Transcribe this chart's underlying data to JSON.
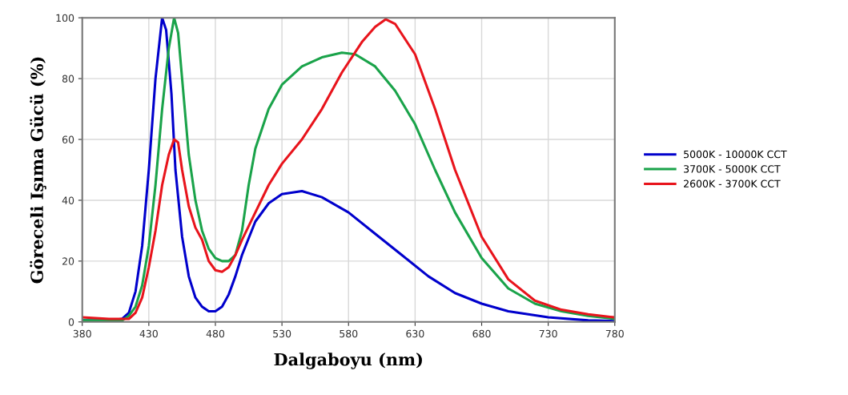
{
  "chart_data": {
    "type": "line",
    "xlabel": "Dalgaboyu (nm)",
    "ylabel": "Göreceli Işıma Gücü (%)",
    "xlim": [
      380,
      780
    ],
    "xticks": [
      380,
      430,
      480,
      530,
      580,
      630,
      680,
      730,
      780
    ],
    "ylim": [
      0,
      100
    ],
    "yticks": [
      0,
      20,
      40,
      60,
      80,
      100
    ],
    "grid": true,
    "legend": "right",
    "marker": "none",
    "line_style": "solid",
    "series": [
      {
        "name": "5000K - 10000K CCT",
        "color": "#0000cc",
        "x": [
          380,
          400,
          410,
          415,
          420,
          425,
          430,
          435,
          440,
          443,
          447,
          450,
          455,
          460,
          465,
          470,
          475,
          480,
          485,
          490,
          495,
          500,
          510,
          520,
          530,
          545,
          560,
          580,
          600,
          620,
          640,
          660,
          680,
          700,
          730,
          760,
          780
        ],
        "values": [
          0.5,
          0.5,
          1,
          3,
          10,
          25,
          50,
          80,
          100,
          96,
          75,
          50,
          28,
          15,
          8,
          5,
          3.5,
          3.5,
          5,
          9,
          15,
          22,
          33,
          39,
          42,
          43,
          41,
          36,
          29,
          22,
          15,
          9.5,
          6,
          3.5,
          1.5,
          0.5,
          0.3
        ]
      },
      {
        "name": "3700K - 5000K CCT",
        "color": "#1aa34a",
        "x": [
          380,
          410,
          415,
          420,
          425,
          430,
          435,
          440,
          445,
          449,
          452,
          455,
          460,
          465,
          470,
          475,
          480,
          485,
          490,
          495,
          500,
          505,
          510,
          520,
          530,
          545,
          560,
          575,
          585,
          600,
          615,
          630,
          645,
          660,
          680,
          700,
          720,
          740,
          760,
          780
        ],
        "values": [
          0.5,
          0.5,
          2,
          5,
          12,
          25,
          45,
          70,
          90,
          100,
          95,
          80,
          55,
          40,
          30,
          24,
          21,
          20,
          20,
          22,
          30,
          45,
          57,
          70,
          78,
          84,
          87,
          88.5,
          88,
          84,
          76,
          65,
          50,
          36,
          21,
          11,
          6,
          3.5,
          2,
          1
        ]
      },
      {
        "name": "2600K - 3700K CCT",
        "color": "#e8141c",
        "x": [
          380,
          400,
          415,
          420,
          425,
          430,
          435,
          440,
          445,
          449,
          452,
          455,
          460,
          465,
          470,
          475,
          480,
          485,
          490,
          495,
          500,
          510,
          520,
          530,
          545,
          560,
          575,
          590,
          600,
          608,
          615,
          630,
          645,
          660,
          680,
          700,
          720,
          740,
          760,
          780
        ],
        "values": [
          1.5,
          1,
          1,
          3,
          8,
          18,
          30,
          45,
          55,
          60,
          59,
          50,
          38,
          31,
          27,
          20,
          17,
          16.5,
          18,
          22,
          27,
          36,
          45,
          52,
          60,
          70,
          82,
          92,
          97,
          99.5,
          98,
          88,
          70,
          50,
          28,
          14,
          7,
          4,
          2.5,
          1.5
        ]
      }
    ]
  }
}
